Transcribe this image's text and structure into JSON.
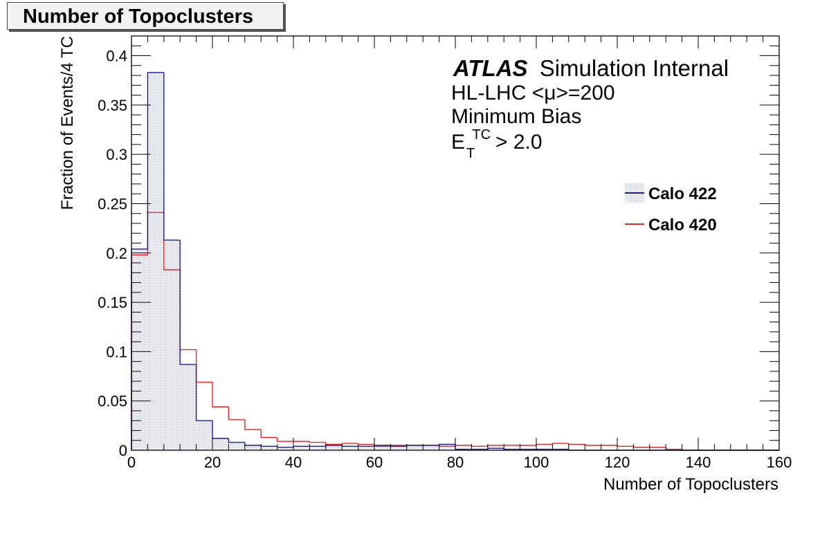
{
  "title_box": "Number of Topoclusters",
  "chart_data": {
    "type": "histogram",
    "xlabel": "Number of Topoclusters",
    "ylabel": "Fraction of Events/4 TC",
    "xlim": [
      0,
      160
    ],
    "ylim": [
      0,
      0.42
    ],
    "x_ticks": [
      0,
      20,
      40,
      60,
      80,
      100,
      120,
      140,
      160
    ],
    "y_ticks": [
      0,
      0.05,
      0.1,
      0.15,
      0.2,
      0.25,
      0.3,
      0.35,
      0.4
    ],
    "x_tick_labels": [
      "0",
      "20",
      "40",
      "60",
      "80",
      "100",
      "120",
      "140",
      "160"
    ],
    "y_tick_labels": [
      "0",
      "0.05",
      "0.1",
      "0.15",
      "0.2",
      "0.25",
      "0.3",
      "0.35",
      "0.4"
    ],
    "bin_width": 4,
    "bin_edges_start": 0,
    "series": [
      {
        "name": "Calo 422",
        "color": "#1a1a9e",
        "fill": "hatched light blue",
        "values": [
          0.204,
          0.383,
          0.213,
          0.087,
          0.03,
          0.012,
          0.008,
          0.005,
          0.004,
          0.003,
          0.004,
          0.004,
          0.005,
          0.004,
          0.004,
          0.005,
          0.004,
          0.005,
          0.005,
          0.006,
          0.001,
          0.001,
          0.002,
          0.001,
          0.001,
          0.001,
          0.001,
          0.0,
          0.0,
          0.0,
          0.0,
          0.0,
          0.0,
          0.0,
          0.0,
          0.0,
          0.0,
          0.0,
          0.0,
          0.0
        ]
      },
      {
        "name": "Calo 420",
        "color": "#ee2222",
        "fill": "none",
        "values": [
          0.198,
          0.241,
          0.183,
          0.102,
          0.069,
          0.044,
          0.031,
          0.021,
          0.013,
          0.009,
          0.009,
          0.008,
          0.006,
          0.007,
          0.006,
          0.004,
          0.005,
          0.005,
          0.005,
          0.004,
          0.005,
          0.004,
          0.005,
          0.005,
          0.005,
          0.006,
          0.007,
          0.006,
          0.005,
          0.005,
          0.004,
          0.003,
          0.003,
          0.001,
          0.0,
          0.0,
          0.0,
          0.0,
          0.0,
          0.0
        ]
      }
    ],
    "annotations": {
      "atlas": "ATLAS",
      "atlas_suffix": "Simulation Internal",
      "line2": "HL-LHC <μ>=200",
      "line3": "Minimum Bias",
      "et_base": "E",
      "et_sup": "TC",
      "et_sub": "T",
      "et_cut": "> 2.0"
    },
    "legend_position": "top-right"
  }
}
